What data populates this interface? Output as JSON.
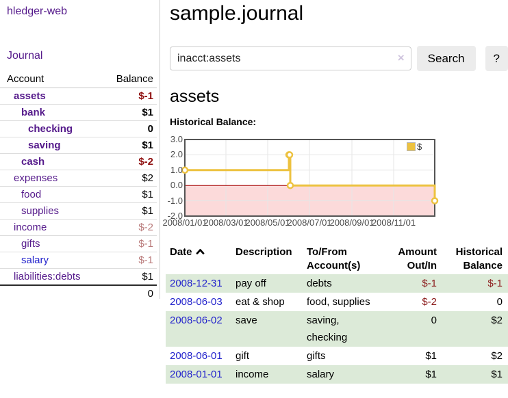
{
  "app": {
    "brand": "hledger-web",
    "nav_journal": "Journal"
  },
  "page": {
    "title": "sample.journal",
    "account_heading": "assets",
    "chart_label": "Historical Balance:"
  },
  "search": {
    "value": "inacct:assets",
    "clear_icon": "×",
    "button_label": "Search",
    "help_label": "?"
  },
  "sidebar_table": {
    "headers": [
      "Account",
      "Balance"
    ],
    "accounts": [
      {
        "name": "assets",
        "indent": 1,
        "bold": true,
        "balance": "$-1",
        "balance_style": "neg-strong",
        "link_style": "purple"
      },
      {
        "name": "bank",
        "indent": 2,
        "bold": true,
        "balance": "$1",
        "balance_style": "pos",
        "link_style": "purple"
      },
      {
        "name": "checking",
        "indent": 3,
        "bold": true,
        "balance": "0",
        "balance_style": "pos",
        "link_style": "purple"
      },
      {
        "name": "saving",
        "indent": 3,
        "bold": true,
        "balance": "$1",
        "balance_style": "pos",
        "link_style": "purple"
      },
      {
        "name": "cash",
        "indent": 2,
        "bold": true,
        "balance": "$-2",
        "balance_style": "neg-strong",
        "link_style": "purple"
      },
      {
        "name": "expenses",
        "indent": 1,
        "bold": false,
        "balance": "$2",
        "balance_style": "pos",
        "link_style": "purple"
      },
      {
        "name": "food",
        "indent": 2,
        "bold": false,
        "balance": "$1",
        "balance_style": "pos",
        "link_style": "purple"
      },
      {
        "name": "supplies",
        "indent": 2,
        "bold": false,
        "balance": "$1",
        "balance_style": "pos",
        "link_style": "purple"
      },
      {
        "name": "income",
        "indent": 1,
        "bold": false,
        "balance": "$-2",
        "balance_style": "neg-soft",
        "link_style": "purple"
      },
      {
        "name": "gifts",
        "indent": 2,
        "bold": false,
        "balance": "$-1",
        "balance_style": "neg-soft",
        "link_style": "purple"
      },
      {
        "name": "salary",
        "indent": 2,
        "bold": false,
        "balance": "$-1",
        "balance_style": "neg-soft",
        "link_style": "blue"
      },
      {
        "name": "liabilities:debts",
        "indent": 1,
        "bold": false,
        "balance": "$1",
        "balance_style": "pos",
        "link_style": "purple"
      }
    ],
    "total": "0"
  },
  "register": {
    "headers": [
      "Date",
      "Description",
      "To/From\nAccount(s)",
      "Amount\nOut/In",
      "Historical\nBalance"
    ],
    "sort_column": "Date",
    "sort_direction": "ascending",
    "stripe_color": "#dcead8",
    "rows": [
      {
        "date": "2008-12-31",
        "description": "pay off",
        "accounts": "debts",
        "amount": "$-1",
        "amount_neg": true,
        "balance": "$-1",
        "balance_neg": true
      },
      {
        "date": "2008-06-03",
        "description": "eat & shop",
        "accounts": "food, supplies",
        "amount": "$-2",
        "amount_neg": true,
        "balance": "0",
        "balance_neg": false
      },
      {
        "date": "2008-06-02",
        "description": "save",
        "accounts": "saving, checking",
        "amount": "0",
        "amount_neg": false,
        "balance": "$2",
        "balance_neg": false
      },
      {
        "date": "2008-06-01",
        "description": "gift",
        "accounts": "gifts",
        "amount": "$1",
        "amount_neg": false,
        "balance": "$2",
        "balance_neg": false
      },
      {
        "date": "2008-01-01",
        "description": "income",
        "accounts": "salary",
        "amount": "$1",
        "amount_neg": false,
        "balance": "$1",
        "balance_neg": false
      }
    ]
  },
  "chart_data": {
    "type": "line",
    "title": "Historical Balance:",
    "step": true,
    "series": [
      {
        "name": "$",
        "color": "#edc240",
        "points": [
          [
            "2008-01-01",
            1
          ],
          [
            "2008-06-01",
            2
          ],
          [
            "2008-06-02",
            2
          ],
          [
            "2008-06-03",
            0
          ],
          [
            "2008-12-31",
            -1
          ]
        ]
      }
    ],
    "x_range": [
      "2008-01-01",
      "2008-12-31"
    ],
    "x_ticks": [
      "2008/01/01",
      "2008/03/01",
      "2008/05/01",
      "2008/07/01",
      "2008/09/01",
      "2008/11/01"
    ],
    "y_ticks": [
      3.0,
      2.0,
      1.0,
      0.0,
      -1.0,
      -2.0
    ],
    "ylim": [
      -2,
      3
    ],
    "grid": true,
    "grid_color": "#e6e6e6",
    "border_color": "#545454",
    "negative_region_color": "#fcdada",
    "zero_line_color": "#a40000",
    "legend_position": "top-right"
  }
}
